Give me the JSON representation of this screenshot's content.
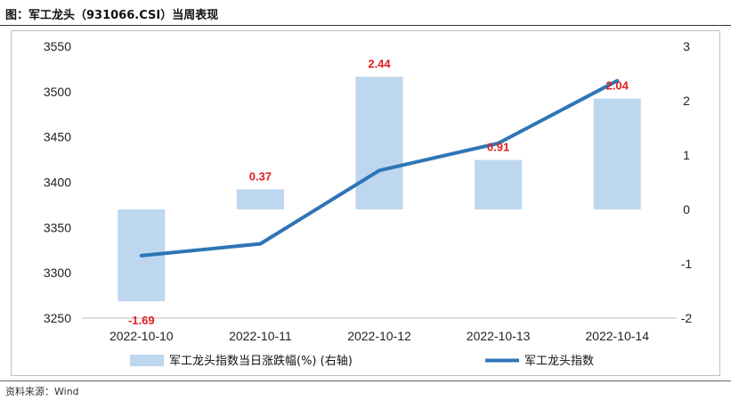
{
  "title": "图：军工龙头（931066.CSI）当周表现",
  "source": "资料来源：Wind",
  "chart_data": {
    "type": "bar",
    "categories": [
      "2022-10-10",
      "2022-10-11",
      "2022-10-12",
      "2022-10-13",
      "2022-10-14"
    ],
    "series": [
      {
        "name": "军工龙头指数当日涨跌幅(%) (右轴)",
        "type": "bar",
        "axis": "right",
        "values": [
          -1.69,
          0.37,
          2.44,
          0.91,
          2.04
        ],
        "color": "#bdd7ee"
      },
      {
        "name": "军工龙头指数",
        "type": "line",
        "axis": "left",
        "values": [
          3319,
          3332,
          3413,
          3443,
          3512
        ],
        "color": "#2e75b6"
      }
    ],
    "data_labels": [
      "-1.69",
      "0.37",
      "2.44",
      "0.91",
      "2.04"
    ],
    "y_left": {
      "min": 3250,
      "max": 3550,
      "ticks": [
        "3250",
        "3300",
        "3350",
        "3400",
        "3450",
        "3500",
        "3550"
      ]
    },
    "y_right": {
      "min": -2,
      "max": 3,
      "ticks": [
        "-2",
        "-1",
        "0",
        "1",
        "2",
        "3"
      ]
    },
    "grid": false,
    "legend": "bottom"
  }
}
